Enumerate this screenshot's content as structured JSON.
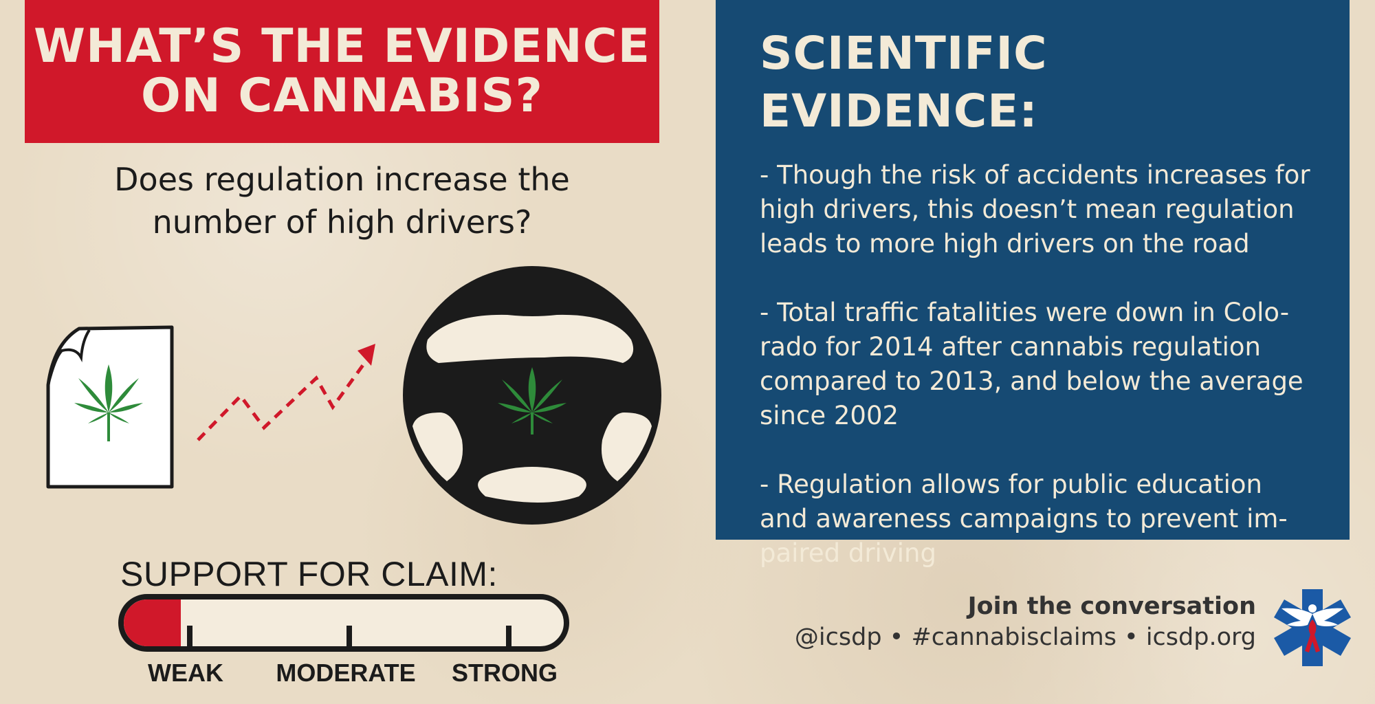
{
  "header": {
    "title_line1": "WHAT’S THE EVIDENCE",
    "title_line2": "ON CANNABIS?",
    "title_bg": "#d0182a"
  },
  "question": {
    "line1": "Does regulation increase the",
    "line2": "number of high drivers?"
  },
  "illustration": {
    "icons": [
      "cannabis-document-icon",
      "rising-arrow-icon",
      "steering-wheel-icon",
      "cannabis-leaf-icon"
    ]
  },
  "support": {
    "title": "SUPPORT FOR CLAIM:",
    "level": 0.13,
    "labels": {
      "weak": "WEAK",
      "moderate": "MODERATE",
      "strong": "STRONG"
    },
    "fill_color": "#d0182a"
  },
  "evidence": {
    "title": "SCIENTIFIC EVIDENCE:",
    "bg": "#164a73",
    "points": [
      [
        "- Though the risk of accidents increases for",
        "high drivers, this doesn’t mean regulation",
        "leads to more high drivers on the road"
      ],
      [
        "- Total traffic fatalities were down in Colo-",
        "rado for 2014 after cannabis regulation",
        "compared to 2013, and below the average",
        "since 2002"
      ],
      [
        "- Regulation allows for public education",
        "and awareness campaigns to prevent im-",
        "paired driving"
      ]
    ]
  },
  "footer": {
    "heading": "Join the conversation",
    "links": "@icsdp • #cannabisclaims • icsdp.org",
    "logo_icon": "icsdp-logo-icon",
    "logo_color": "#1b5aa6"
  }
}
